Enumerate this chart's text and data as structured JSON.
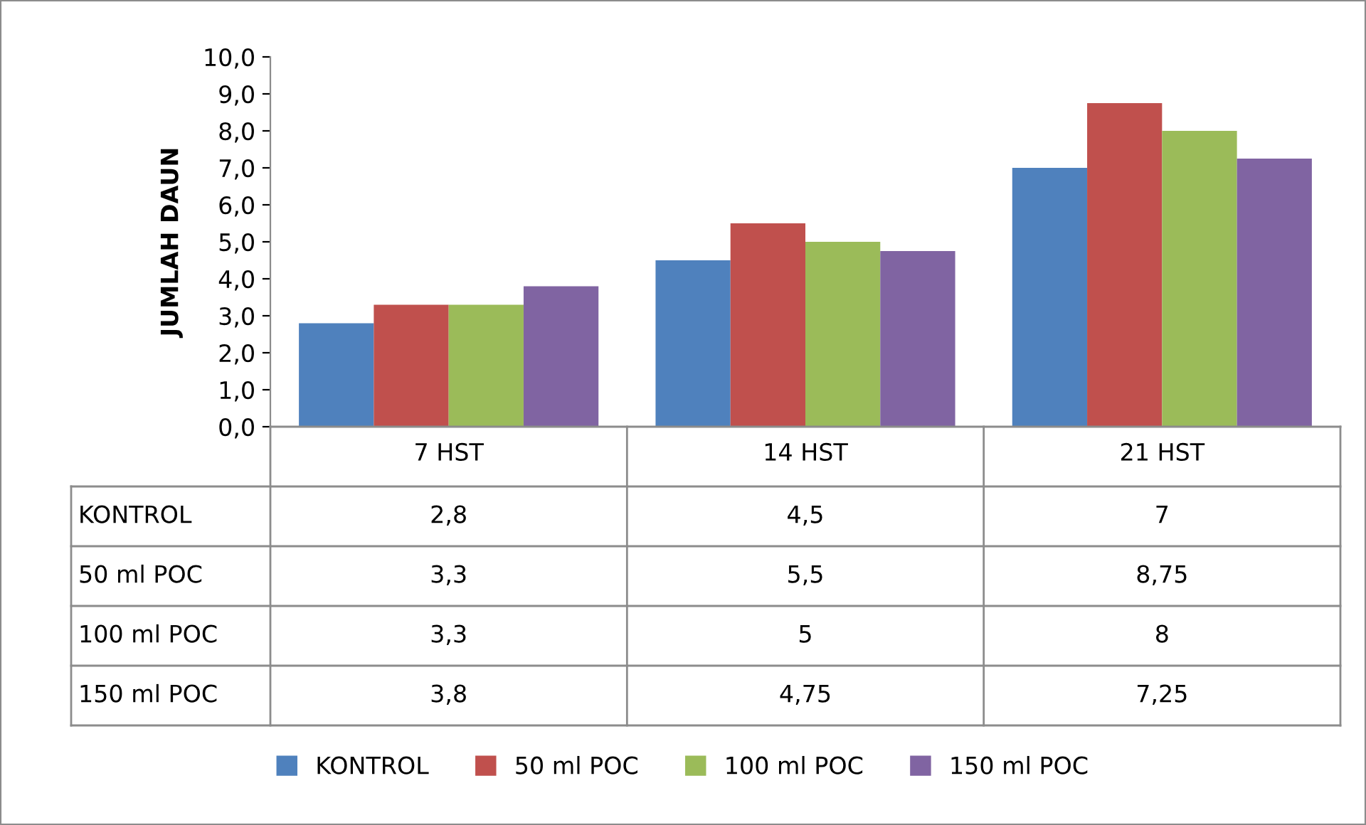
{
  "chart_data": {
    "type": "bar",
    "ylabel": "JUMLAH DAUN",
    "categories": [
      "7 HST",
      "14 HST",
      "21 HST"
    ],
    "series": [
      {
        "name": "KONTROL",
        "color": "#4f81bd",
        "values": [
          2.8,
          4.5,
          7
        ],
        "value_labels": [
          "2,8",
          "4,5",
          "7"
        ]
      },
      {
        "name": "50 ml POC",
        "color": "#c0504d",
        "values": [
          3.3,
          5.5,
          8.75
        ],
        "value_labels": [
          "3,3",
          "5,5",
          "8,75"
        ]
      },
      {
        "name": "100 ml POC",
        "color": "#9bbb59",
        "values": [
          3.3,
          5,
          8
        ],
        "value_labels": [
          "3,3",
          "5",
          "8"
        ]
      },
      {
        "name": "150 ml POC",
        "color": "#8064a2",
        "values": [
          3.8,
          4.75,
          7.25
        ],
        "value_labels": [
          "3,8",
          "4,75",
          "7,25"
        ]
      }
    ],
    "ylim": [
      0,
      10
    ],
    "yticks": [
      {
        "value": 0,
        "label": "0,0"
      },
      {
        "value": 1,
        "label": "1,0"
      },
      {
        "value": 2,
        "label": "2,0"
      },
      {
        "value": 3,
        "label": "3,0"
      },
      {
        "value": 4,
        "label": "4,0"
      },
      {
        "value": 5,
        "label": "5,0"
      },
      {
        "value": 6,
        "label": "6,0"
      },
      {
        "value": 7,
        "label": "7,0"
      },
      {
        "value": 8,
        "label": "8,0"
      },
      {
        "value": 9,
        "label": "9,0"
      },
      {
        "value": 10,
        "label": "10,0"
      }
    ],
    "grid": false,
    "legend": "bottom"
  }
}
